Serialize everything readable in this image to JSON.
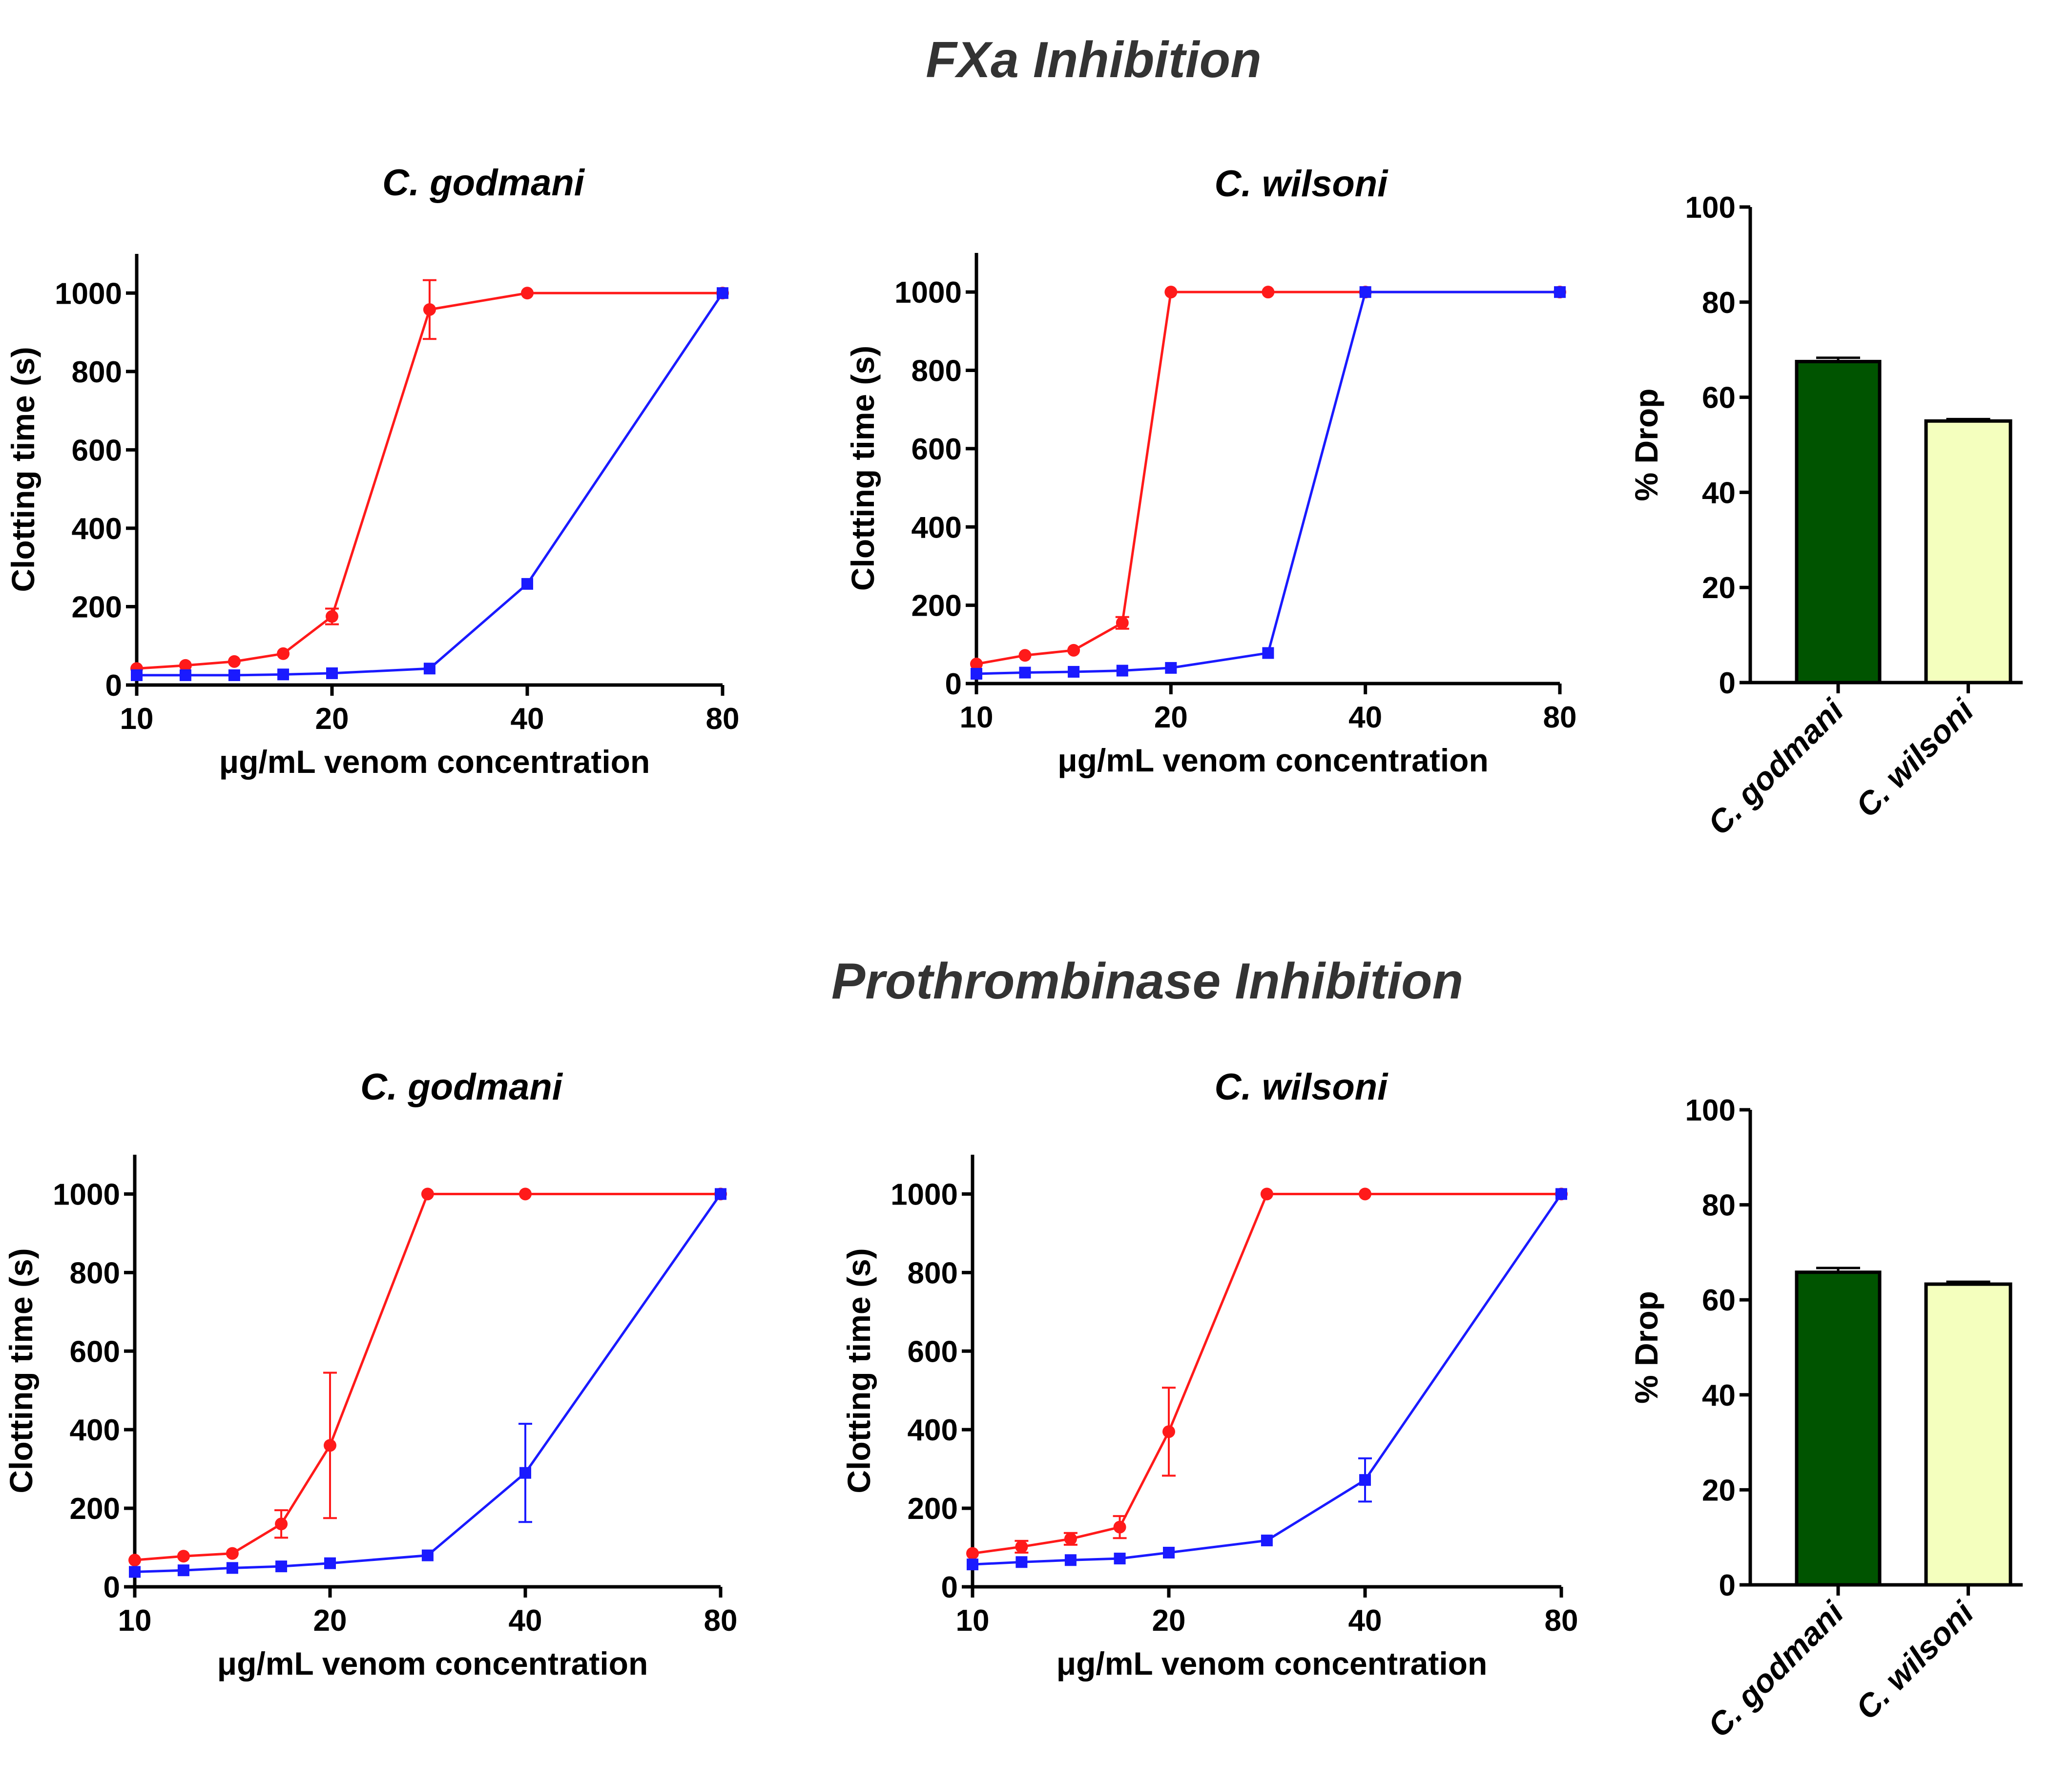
{
  "colors": {
    "red_series": "#ff1a1a",
    "blue_series": "#1a1aff",
    "godmani_bar": "#005400",
    "wilsoni_bar": "#f4ffbe"
  },
  "sections": [
    {
      "title": "FXa Inhibition"
    },
    {
      "title": "Prothrombinase Inhibition"
    }
  ],
  "chart_data": [
    {
      "id": "fxa-godmani",
      "type": "line",
      "title": "C. godmani",
      "xlabel": "μg/mL venom concentration",
      "ylabel": "Clotting time (s)",
      "xscale": "log2",
      "xlim": [
        10,
        80
      ],
      "ylim": [
        0,
        1100
      ],
      "xticks": [
        10,
        20,
        40,
        80
      ],
      "xtick_labels": [
        "10",
        "20",
        "40",
        "80"
      ],
      "yticks": [
        0,
        200,
        400,
        600,
        800,
        1000
      ],
      "ytick_labels": [
        "0",
        "200",
        "400",
        "600",
        "800",
        "1000"
      ],
      "series": [
        {
          "name": "red",
          "color": "#ff1a1a",
          "marker": "circle",
          "x": [
            10,
            11.89,
            14.14,
            16.82,
            20,
            28.28,
            40,
            80
          ],
          "y": [
            42,
            50,
            60,
            80,
            175,
            958,
            1000,
            1000
          ],
          "err": [
            0,
            0,
            0,
            0,
            20,
            75,
            0,
            0
          ]
        },
        {
          "name": "blue",
          "color": "#1a1aff",
          "marker": "square",
          "x": [
            10,
            11.89,
            14.14,
            16.82,
            20,
            28.28,
            40,
            80
          ],
          "y": [
            25,
            25,
            25,
            27,
            30,
            42,
            258,
            1000
          ],
          "err": [
            0,
            0,
            0,
            0,
            0,
            0,
            0,
            0
          ]
        }
      ]
    },
    {
      "id": "fxa-wilsoni",
      "type": "line",
      "title": "C. wilsoni",
      "xlabel": "μg/mL venom concentration",
      "ylabel": "Clotting time (s)",
      "xscale": "log2",
      "xlim": [
        10,
        80
      ],
      "ylim": [
        0,
        1100
      ],
      "xticks": [
        10,
        20,
        40,
        80
      ],
      "xtick_labels": [
        "10",
        "20",
        "40",
        "80"
      ],
      "yticks": [
        0,
        200,
        400,
        600,
        800,
        1000
      ],
      "ytick_labels": [
        "0",
        "200",
        "400",
        "600",
        "800",
        "1000"
      ],
      "series": [
        {
          "name": "red",
          "color": "#ff1a1a",
          "marker": "circle",
          "x": [
            10,
            11.89,
            14.14,
            16.82,
            20,
            28.28,
            40,
            80
          ],
          "y": [
            50,
            72,
            85,
            155,
            1000,
            1000,
            1000,
            1000
          ],
          "err": [
            0,
            0,
            0,
            15,
            0,
            0,
            0,
            0
          ]
        },
        {
          "name": "blue",
          "color": "#1a1aff",
          "marker": "square",
          "x": [
            10,
            11.89,
            14.14,
            16.82,
            20,
            28.28,
            40,
            80
          ],
          "y": [
            25,
            28,
            30,
            33,
            40,
            78,
            1000,
            1000
          ],
          "err": [
            0,
            0,
            0,
            0,
            0,
            0,
            0,
            0
          ]
        }
      ]
    },
    {
      "id": "fxa-drop",
      "type": "bar",
      "title": "",
      "xlabel": "",
      "ylabel": "% Drop",
      "ylim": [
        0,
        100
      ],
      "yticks": [
        0,
        20,
        40,
        60,
        80,
        100
      ],
      "ytick_labels": [
        "0",
        "20",
        "40",
        "60",
        "80",
        "100"
      ],
      "categories": [
        "C. godmani",
        "C. wilsoni"
      ],
      "values": [
        67.5,
        55
      ],
      "err": [
        0.8,
        0.4
      ],
      "bar_colors": [
        "#005400",
        "#f4ffbe"
      ]
    },
    {
      "id": "pro-godmani",
      "type": "line",
      "title": "C. godmani",
      "xlabel": "μg/mL venom concentration",
      "ylabel": "Clotting time (s)",
      "xscale": "log2",
      "xlim": [
        10,
        80
      ],
      "ylim": [
        0,
        1100
      ],
      "xticks": [
        10,
        20,
        40,
        80
      ],
      "xtick_labels": [
        "10",
        "20",
        "40",
        "80"
      ],
      "yticks": [
        0,
        200,
        400,
        600,
        800,
        1000
      ],
      "ytick_labels": [
        "0",
        "200",
        "400",
        "600",
        "800",
        "1000"
      ],
      "series": [
        {
          "name": "red",
          "color": "#ff1a1a",
          "marker": "circle",
          "x": [
            10,
            11.89,
            14.14,
            16.82,
            20,
            28.28,
            40,
            80
          ],
          "y": [
            68,
            78,
            85,
            160,
            360,
            1000,
            1000,
            1000
          ],
          "err": [
            0,
            0,
            0,
            35,
            185,
            0,
            0,
            0
          ]
        },
        {
          "name": "blue",
          "color": "#1a1aff",
          "marker": "square",
          "x": [
            10,
            11.89,
            14.14,
            16.82,
            20,
            28.28,
            40,
            80
          ],
          "y": [
            38,
            42,
            48,
            52,
            60,
            80,
            290,
            1000
          ],
          "err": [
            0,
            0,
            0,
            0,
            0,
            0,
            125,
            0
          ]
        }
      ]
    },
    {
      "id": "pro-wilsoni",
      "type": "line",
      "title": "C. wilsoni",
      "xlabel": "μg/mL venom concentration",
      "ylabel": "Clotting time (s)",
      "xscale": "log2",
      "xlim": [
        10,
        80
      ],
      "ylim": [
        0,
        1100
      ],
      "xticks": [
        10,
        20,
        40,
        80
      ],
      "xtick_labels": [
        "10",
        "20",
        "40",
        "80"
      ],
      "yticks": [
        0,
        200,
        400,
        600,
        800,
        1000
      ],
      "ytick_labels": [
        "0",
        "200",
        "400",
        "600",
        "800",
        "1000"
      ],
      "series": [
        {
          "name": "red",
          "color": "#ff1a1a",
          "marker": "circle",
          "x": [
            10,
            11.89,
            14.14,
            16.82,
            20,
            28.28,
            40,
            80
          ],
          "y": [
            85,
            102,
            122,
            152,
            395,
            1000,
            1000,
            1000
          ],
          "err": [
            0,
            15,
            15,
            28,
            112,
            0,
            0,
            0
          ]
        },
        {
          "name": "blue",
          "color": "#1a1aff",
          "marker": "square",
          "x": [
            10,
            11.89,
            14.14,
            16.82,
            20,
            28.28,
            40,
            80
          ],
          "y": [
            57,
            63,
            68,
            72,
            87,
            118,
            272,
            1000
          ],
          "err": [
            0,
            0,
            0,
            0,
            0,
            0,
            55,
            0
          ]
        }
      ]
    },
    {
      "id": "pro-drop",
      "type": "bar",
      "title": "",
      "xlabel": "",
      "ylabel": "% Drop",
      "ylim": [
        0,
        100
      ],
      "yticks": [
        0,
        20,
        40,
        60,
        80,
        100
      ],
      "ytick_labels": [
        "0",
        "20",
        "40",
        "60",
        "80",
        "100"
      ],
      "categories": [
        "C. godmani",
        "C. wilsoni"
      ],
      "values": [
        65.8,
        63.3
      ],
      "err": [
        0.9,
        0.5
      ],
      "bar_colors": [
        "#005400",
        "#f4ffbe"
      ]
    }
  ]
}
